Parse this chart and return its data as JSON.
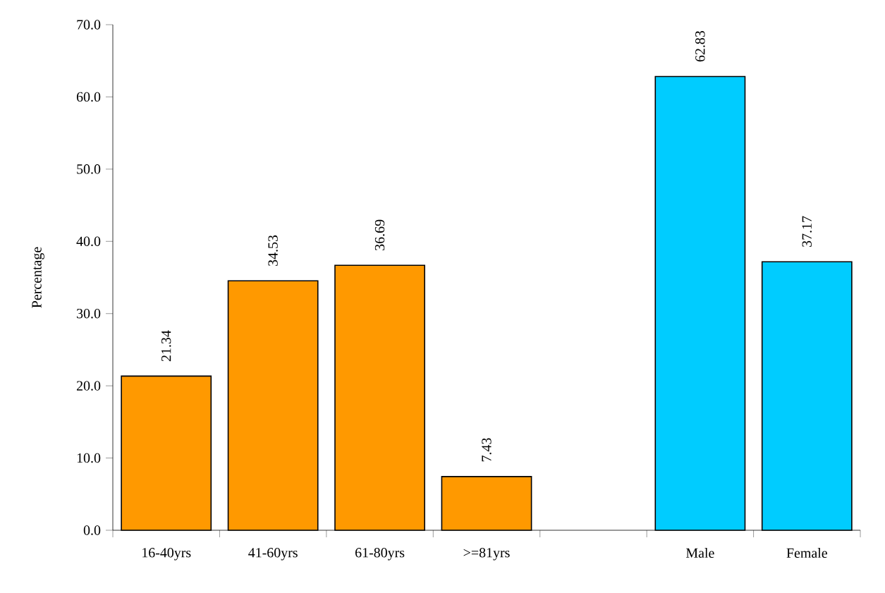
{
  "chart_data": {
    "type": "bar",
    "ylabel": "Percentage",
    "categories": [
      "16-40yrs",
      "41-60yrs",
      "61-80yrs",
      ">=81yrs",
      null,
      "Male",
      "Female"
    ],
    "values": [
      21.34,
      34.53,
      36.69,
      7.43,
      null,
      62.83,
      37.17
    ],
    "value_labels": [
      "21.34",
      "34.53",
      "36.69",
      "7.43",
      null,
      "62.83",
      "37.17"
    ],
    "colors": [
      "#ff9900",
      "#ff9900",
      "#ff9900",
      "#ff9900",
      null,
      "#00ccff",
      "#00ccff"
    ],
    "ylim": [
      0,
      70
    ],
    "yticks": [
      {
        "value": 0,
        "label": "0.0"
      },
      {
        "value": 10,
        "label": "10.0"
      },
      {
        "value": 20,
        "label": "20.0"
      },
      {
        "value": 30,
        "label": "30.0"
      },
      {
        "value": 40,
        "label": "40.0"
      },
      {
        "value": 50,
        "label": "50.0"
      },
      {
        "value": 60,
        "label": "60.0"
      },
      {
        "value": 70,
        "label": "70.0"
      }
    ],
    "grid": false
  }
}
